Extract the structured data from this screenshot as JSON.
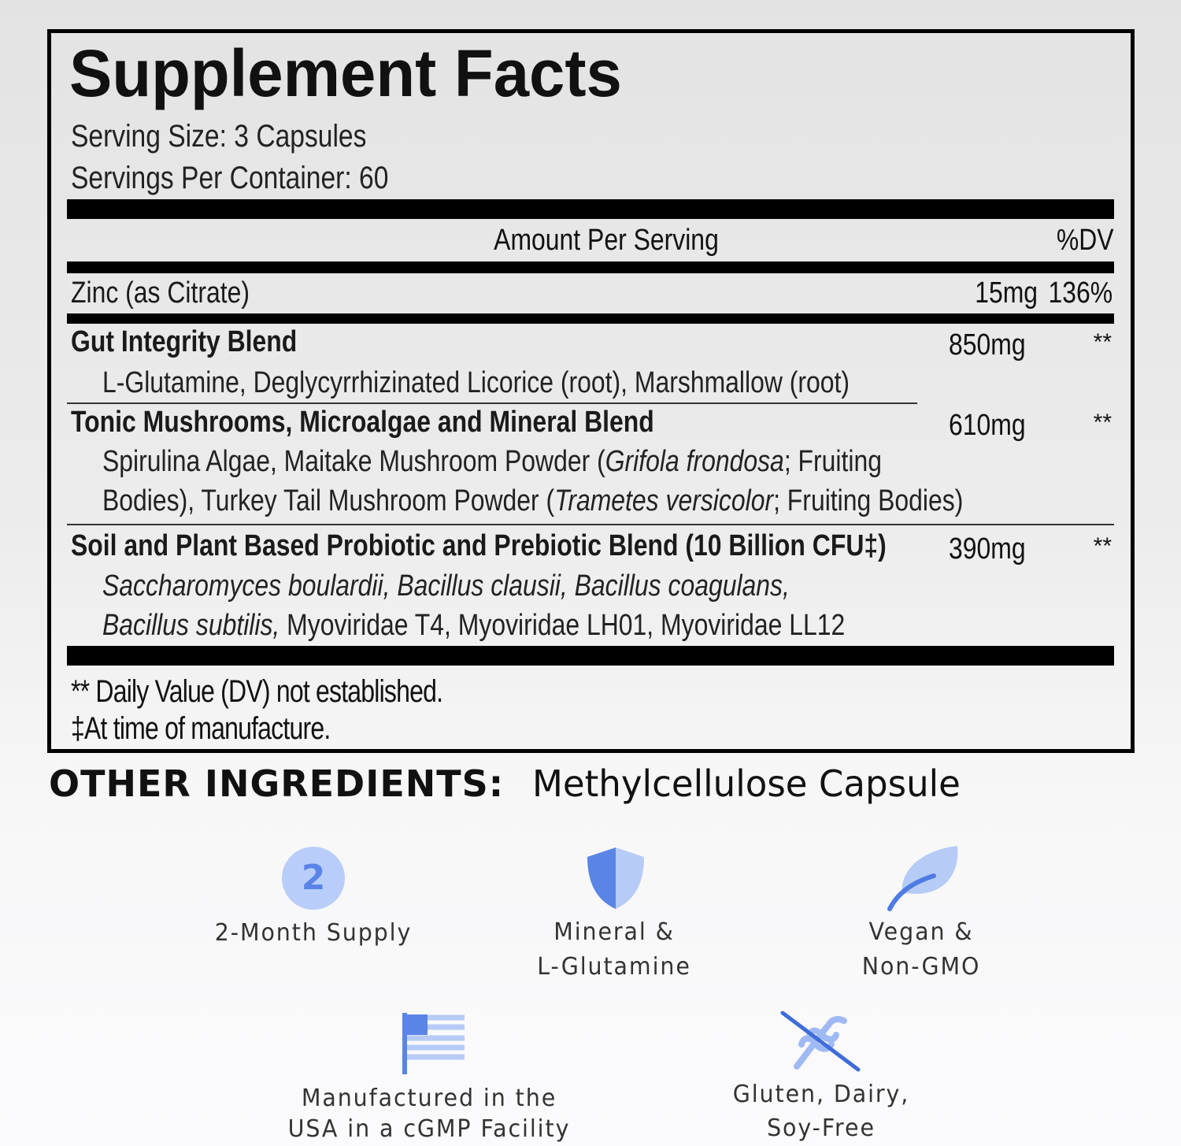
{
  "header": {
    "title": "Supplement Facts",
    "serving_size": "Serving Size: 3 Capsules",
    "servings_per_container": "Servings Per Container: 60"
  },
  "table": {
    "column_headers": [
      "Amount Per Serving",
      "%DV"
    ],
    "rows": [
      {
        "name": "Zinc (as Citrate)",
        "amount": "15mg",
        "dv": "136%"
      },
      {
        "name": "Gut Integrity Blend",
        "amount": "850mg",
        "dv": "**",
        "ingredients": [
          [
            {
              "text": "L-Glutamine, Deglycyrrhizinated Licorice (root), Marshmallow (root)",
              "italic": false
            }
          ]
        ]
      },
      {
        "name": "Tonic Mushrooms, Microalgae and Mineral Blend",
        "amount": "610mg",
        "dv": "**",
        "ingredients": [
          [
            {
              "text": "Spirulina Algae, Maitake Mushroom Powder (",
              "italic": false
            },
            {
              "text": "Grifola frondosa",
              "italic": true
            },
            {
              "text": "; Fruiting",
              "italic": false
            }
          ],
          [
            {
              "text": "Bodies), Turkey Tail Mushroom Powder (",
              "italic": false
            },
            {
              "text": "Trametes versicolor",
              "italic": true
            },
            {
              "text": "; Fruiting Bodies)",
              "italic": false
            }
          ]
        ]
      },
      {
        "name": "Soil and Plant Based Probiotic and Prebiotic Blend (10 Billion CFU‡)",
        "amount": "390mg",
        "dv": "**",
        "ingredients": [
          [
            {
              "text": "Saccharomyces boulardii, Bacillus clausii, Bacillus coagulans,",
              "italic": true
            }
          ],
          [
            {
              "text": "Bacillus subtilis,",
              "italic": true
            },
            {
              "text": " Myoviridae T4, Myoviridae LH01, Myoviridae LL12",
              "italic": false
            }
          ]
        ]
      }
    ]
  },
  "footnotes": [
    "** Daily Value (DV) not established.",
    "‡At time of manufacture."
  ],
  "other_ingredients": {
    "label": "OTHER INGREDIENTS:",
    "text": "Methylcellulose Capsule"
  },
  "badges": [
    {
      "symbol": "2",
      "lines": [
        "2-Month Supply"
      ]
    },
    {
      "lines": [
        "Mineral &",
        "L-Glutamine"
      ]
    },
    {
      "lines": [
        "Vegan &",
        "Non-GMO"
      ]
    },
    {
      "lines": [
        "Manufactured in the",
        "USA in a cGMP Facility"
      ]
    },
    {
      "lines": [
        "Gluten, Dairy,",
        "Soy-Free"
      ]
    }
  ]
}
